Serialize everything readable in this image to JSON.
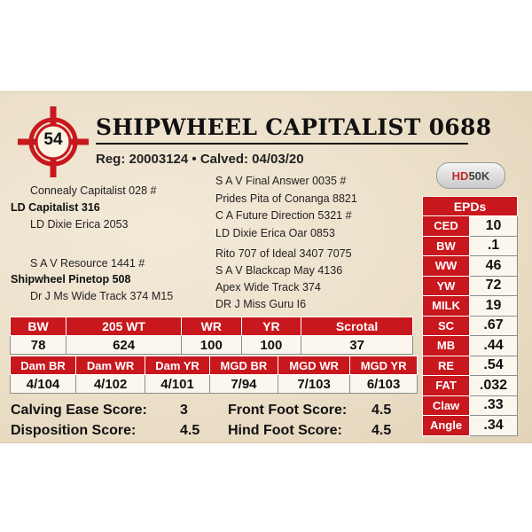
{
  "card": {
    "lot_number": "54",
    "title": "SHIPWHEEL CAPITALIST 0688",
    "reg_line": "Reg: 20003124 • Calved: 04/03/20",
    "logo": {
      "icon": "hd50k-logo",
      "hd": "HD",
      "rest": "50K"
    }
  },
  "pedigree": {
    "sire": "LD Capitalist 316",
    "sire_sire": "Connealy Capitalist 028 #",
    "sire_dam": "LD Dixie Erica 2053",
    "sss": "S A V Final Answer 0035 #",
    "ssd": "Prides Pita of Conanga 8821",
    "sds": "C A Future Direction 5321 #",
    "sdd": "LD Dixie Erica Oar 0853",
    "dam": "Shipwheel Pinetop 508",
    "dam_sire": "S A V Resource 1441 #",
    "dam_dam": "Dr J Ms Wide Track 374 M15",
    "dss": "Rito 707 of Ideal 3407 7075",
    "dsd": "S A V Blackcap May 4136",
    "dds": "Apex Wide Track 374",
    "ddd": "DR J Miss Guru I6"
  },
  "performance": {
    "row1": [
      {
        "label": "BW",
        "value": "78"
      },
      {
        "label": "205 WT",
        "value": "624"
      },
      {
        "label": "WR",
        "value": "100"
      },
      {
        "label": "YR",
        "value": "100"
      },
      {
        "label": "Scrotal",
        "value": "37"
      }
    ],
    "row2": [
      {
        "label": "Dam BR",
        "value": "4/104"
      },
      {
        "label": "Dam WR",
        "value": "4/102"
      },
      {
        "label": "Dam YR",
        "value": "4/101"
      },
      {
        "label": "MGD BR",
        "value": "7/94"
      },
      {
        "label": "MGD WR",
        "value": "7/103"
      },
      {
        "label": "MGD YR",
        "value": "6/103"
      }
    ]
  },
  "epds": {
    "header": "EPDs",
    "items": [
      {
        "label": "CED",
        "value": "10"
      },
      {
        "label": "BW",
        "value": ".1"
      },
      {
        "label": "WW",
        "value": "46"
      },
      {
        "label": "YW",
        "value": "72"
      },
      {
        "label": "MILK",
        "value": "19"
      },
      {
        "label": "SC",
        "value": ".67"
      },
      {
        "label": "MB",
        "value": ".44"
      },
      {
        "label": "RE",
        "value": ".54"
      },
      {
        "label": "FAT",
        "value": ".032"
      },
      {
        "label": "Claw",
        "value": ".33"
      },
      {
        "label": "Angle",
        "value": ".34"
      }
    ]
  },
  "scores": {
    "calving_label": "Calving Ease Score:",
    "calving_value": "3",
    "front_label": "Front Foot Score:",
    "front_value": "4.5",
    "disposition_label": "Disposition Score:",
    "disposition_value": "4.5",
    "hind_label": "Hind Foot Score:",
    "hind_value": "4.5"
  },
  "colors": {
    "accent": "#c8171d",
    "card": "#ebdfc8"
  }
}
